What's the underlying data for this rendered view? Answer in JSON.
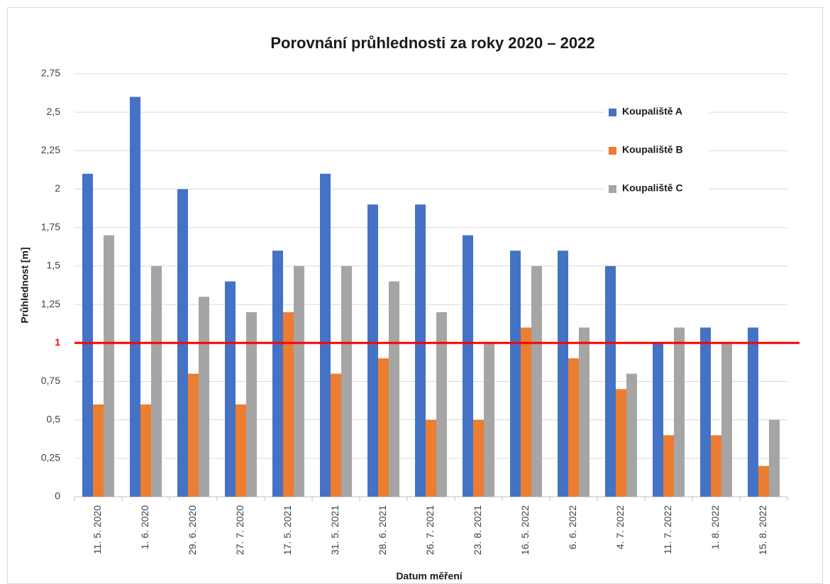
{
  "chart_data": {
    "type": "bar",
    "title": "Porovnání průhlednosti za roky 2020 – 2022",
    "x_label": "Datum měření",
    "y_label": "Průhlednost [m]",
    "categories": [
      "11. 5. 2020",
      "1. 6. 2020",
      "29. 6. 2020",
      "27. 7. 2020",
      "17. 5. 2021",
      "31. 5. 2021",
      "28. 6. 2021",
      "26. 7. 2021",
      "23. 8. 2021",
      "16. 5. 2022",
      "6. 6. 2022",
      "4. 7. 2022",
      "11. 7. 2022",
      "1. 8. 2022",
      "15. 8. 2022"
    ],
    "series": [
      {
        "name": "Koupaliště A",
        "color": "#4472c4",
        "values": [
          2.1,
          2.6,
          2.0,
          1.4,
          1.6,
          2.1,
          1.9,
          1.9,
          1.7,
          1.6,
          1.6,
          1.5,
          1.0,
          1.1,
          1.1
        ]
      },
      {
        "name": "Koupaliště B",
        "color": "#ed7d31",
        "values": [
          0.6,
          0.6,
          0.8,
          0.6,
          1.2,
          0.8,
          0.9,
          0.5,
          0.5,
          1.1,
          0.9,
          0.7,
          0.4,
          0.4,
          0.2
        ]
      },
      {
        "name": "Koupaliště C",
        "color": "#a5a5a5",
        "values": [
          1.7,
          1.5,
          1.3,
          1.2,
          1.5,
          1.5,
          1.4,
          1.2,
          1.0,
          1.5,
          1.1,
          0.8,
          1.1,
          1.0,
          0.5
        ]
      }
    ],
    "ylim": [
      0,
      2.75
    ],
    "yticks": [
      0,
      {
        "value": 0.25,
        "label": "0,25"
      },
      {
        "value": 0.5,
        "label": "0,5"
      },
      {
        "value": 0.75,
        "label": "0,75"
      },
      1,
      {
        "value": 1.25,
        "label": "1,25"
      },
      {
        "value": 1.5,
        "label": "1,5"
      },
      {
        "value": 1.75,
        "label": "1,75"
      },
      2,
      {
        "value": 2.25,
        "label": "2,25"
      },
      {
        "value": 2.5,
        "label": "2,5"
      },
      {
        "value": 2.75,
        "label": "2,75"
      }
    ],
    "grid": true,
    "reference_line": {
      "value": 1,
      "color": "#ff0000"
    },
    "legend_position": "upper right"
  }
}
